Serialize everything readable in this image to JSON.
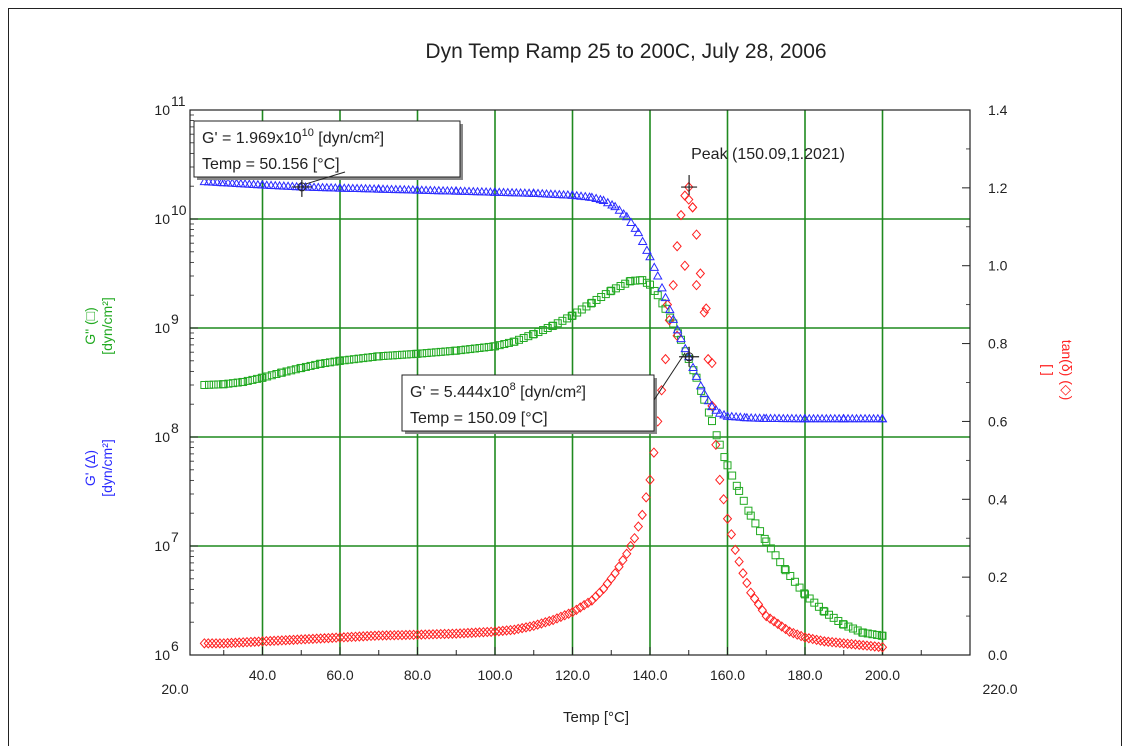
{
  "chart_data": {
    "type": "scatter",
    "title": "Dyn Temp Ramp 25 to 200C, July 28, 2006",
    "xlabel": "Temp [°C]",
    "ylabel_left": [
      "G' (Δ)",
      "[dyn/cm²]",
      "G\" (□)",
      "[dyn/cm²]"
    ],
    "ylabel_right": [
      "tan(δ) (◇)",
      "[ ]"
    ],
    "xlim": [
      20,
      220
    ],
    "ylim_left": [
      1000000,
      100000000000
    ],
    "ylim_right": [
      0,
      1.4
    ],
    "y_left_scale": "log",
    "grid": true,
    "x_ticks": [
      "20.0",
      "40.0",
      "60.0",
      "80.0",
      "100.0",
      "120.0",
      "140.0",
      "160.0",
      "180.0",
      "200.0",
      "220.0"
    ],
    "y_left_ticks": [
      "10",
      "10",
      "10",
      "10",
      "10",
      "10"
    ],
    "y_left_exponents": [
      "6",
      "7",
      "8",
      "9",
      "10",
      "11"
    ],
    "y_right_ticks": [
      "0.0",
      "0.2",
      "0.4",
      "0.6",
      "0.8",
      "1.0",
      "1.2",
      "1.4"
    ],
    "series": [
      {
        "name": "G' (Δ)",
        "marker": "triangle",
        "color": "#2b2bff",
        "x": [
          25,
          30,
          40,
          50,
          60,
          70,
          80,
          90,
          100,
          110,
          120,
          125,
          128,
          131,
          134,
          137,
          140,
          142,
          144,
          146,
          148,
          150,
          152,
          154,
          156,
          158,
          160,
          165,
          170,
          180,
          190,
          200
        ],
        "y": [
          22000000000.0,
          21500000000.0,
          20500000000.0,
          19690000000.0,
          19200000000.0,
          18800000000.0,
          18400000000.0,
          18000000000.0,
          17600000000.0,
          17200000000.0,
          16500000000.0,
          15800000000.0,
          14800000000.0,
          13000000000.0,
          10500000000.0,
          7500000000.0,
          4500000000.0,
          3000000000.0,
          1900000000.0,
          1200000000.0,
          800000000.0,
          544400000.0,
          360000000.0,
          250000000.0,
          190000000.0,
          165000000.0,
          155000000.0,
          150000000.0,
          148000000.0,
          147000000.0,
          147000000.0,
          147000000.0
        ]
      },
      {
        "name": "G\" (□)",
        "marker": "square",
        "color": "#22aa22",
        "x": [
          25,
          30,
          35,
          40,
          45,
          50,
          55,
          60,
          70,
          80,
          90,
          100,
          105,
          110,
          115,
          120,
          125,
          130,
          135,
          138,
          140,
          142,
          144,
          146,
          148,
          150,
          152,
          154,
          156,
          158,
          160,
          163,
          166,
          170,
          175,
          180,
          185,
          190,
          195,
          200
        ],
        "y": [
          300000000.0,
          305000000.0,
          320000000.0,
          350000000.0,
          390000000.0,
          430000000.0,
          470000000.0,
          500000000.0,
          550000000.0,
          580000000.0,
          620000000.0,
          680000000.0,
          750000000.0,
          880000000.0,
          1050000000.0,
          1300000000.0,
          1700000000.0,
          2200000000.0,
          2700000000.0,
          2750000000.0,
          2500000000.0,
          2000000000.0,
          1500000000.0,
          1100000000.0,
          780000000.0,
          520000000.0,
          350000000.0,
          220000000.0,
          140000000.0,
          85000000.0,
          55000000.0,
          32000000.0,
          19000000.0,
          11000000.0,
          6000000.0,
          3600000.0,
          2500000.0,
          1900000.0,
          1600000.0,
          1500000.0
        ]
      },
      {
        "name": "tan(δ) (◇)",
        "marker": "diamond",
        "color": "#ff2020",
        "axis": "right",
        "x": [
          25,
          30,
          40,
          50,
          60,
          70,
          80,
          90,
          100,
          105,
          110,
          115,
          120,
          125,
          128,
          131,
          134,
          136,
          138,
          140,
          141,
          142,
          143,
          144,
          145,
          146,
          147,
          148,
          149,
          150,
          151,
          152,
          153,
          154,
          155,
          156,
          157,
          158,
          160,
          162,
          164,
          166,
          168,
          170,
          173,
          176,
          180,
          185,
          190,
          195,
          200
        ],
        "y": [
          0.03,
          0.03,
          0.035,
          0.04,
          0.045,
          0.05,
          0.052,
          0.055,
          0.06,
          0.065,
          0.075,
          0.09,
          0.11,
          0.14,
          0.17,
          0.21,
          0.26,
          0.3,
          0.36,
          0.45,
          0.52,
          0.6,
          0.68,
          0.76,
          0.86,
          0.95,
          1.05,
          1.13,
          1.18,
          1.2021,
          1.15,
          1.08,
          0.98,
          0.88,
          0.76,
          0.64,
          0.54,
          0.45,
          0.35,
          0.27,
          0.21,
          0.16,
          0.13,
          0.1,
          0.08,
          0.06,
          0.045,
          0.035,
          0.03,
          0.025,
          0.02
        ]
      }
    ],
    "annotations": [
      {
        "lines": [
          "G' = 1.969x10",
          "10",
          " [dyn/cm²]",
          "Temp = 50.156 [°C]"
        ],
        "x": 50.156,
        "y": 19690000000.0
      },
      {
        "lines": [
          "G' = 5.444x10",
          "8",
          " [dyn/cm²]",
          "Temp = 150.09 [°C]"
        ],
        "x": 150.09,
        "y": 544400000.0
      },
      {
        "text": "Peak (150.09,1.2021)",
        "x": 150.09,
        "y": 1.2021
      }
    ]
  }
}
